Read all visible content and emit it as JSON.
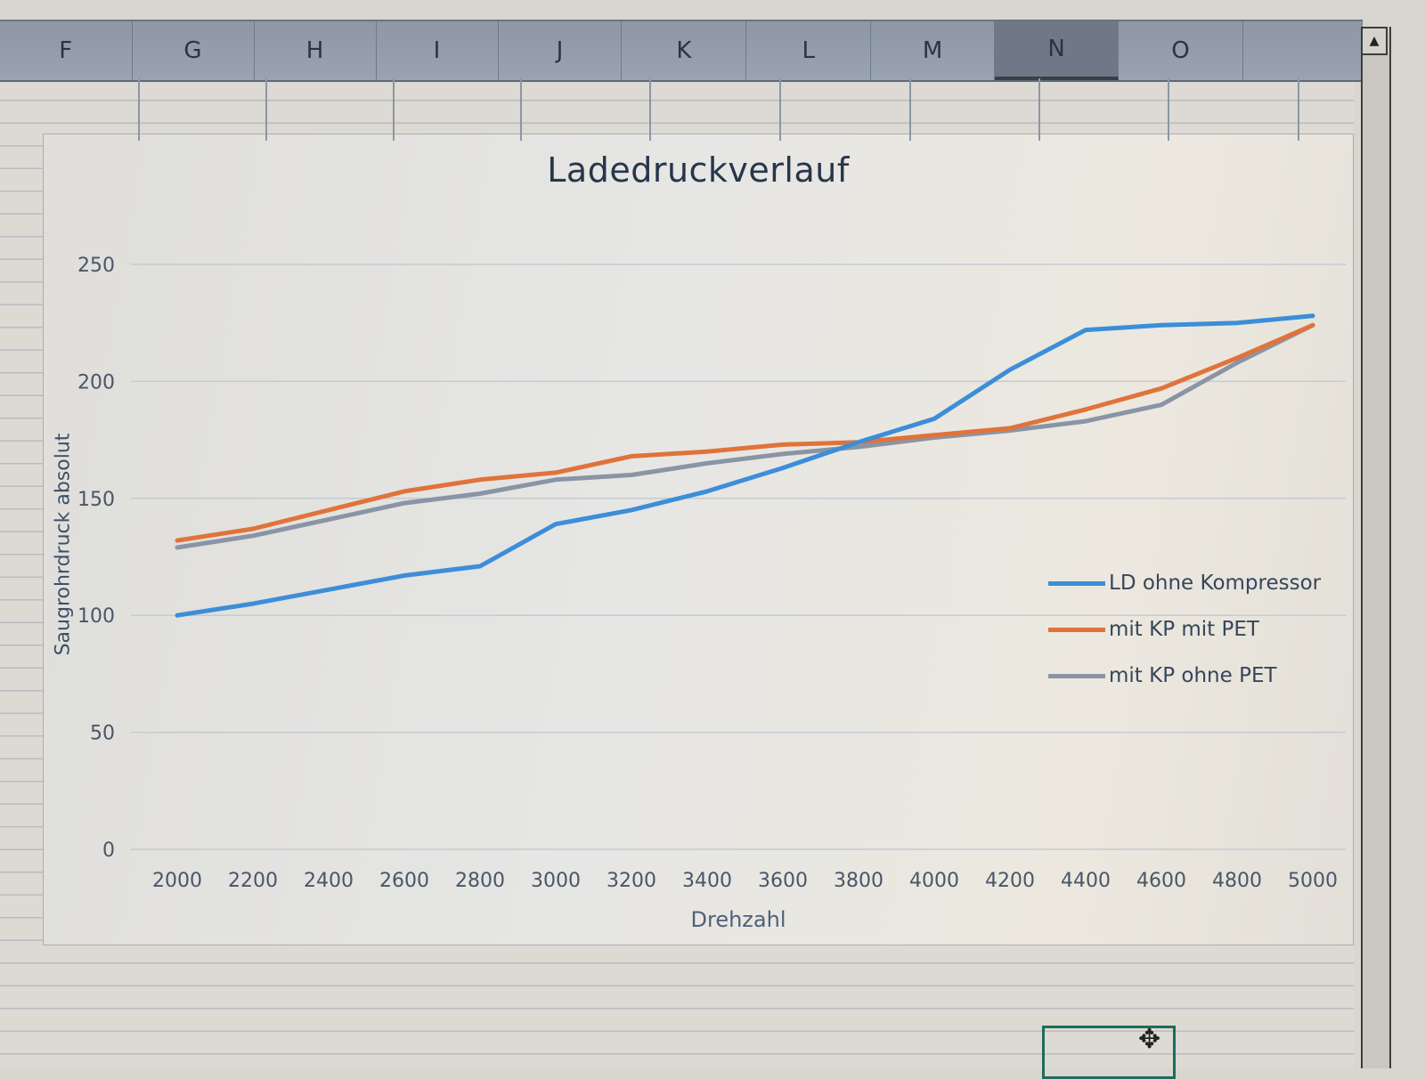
{
  "spreadsheet": {
    "columns": [
      "F",
      "G",
      "H",
      "I",
      "J",
      "K",
      "L",
      "M",
      "N",
      "O"
    ],
    "selected_column": "N",
    "scroll_up_icon": "▲"
  },
  "chart": {
    "title": "Ladedruckverlauf",
    "x_axis_title": "Drehzahl",
    "y_axis_title": "Saugrohrdruck absolut",
    "y_ticks": [
      "0",
      "50",
      "100",
      "150",
      "200",
      "250"
    ],
    "x_ticks": [
      "2000",
      "2200",
      "2400",
      "2600",
      "2800",
      "3000",
      "3200",
      "3400",
      "3600",
      "3800",
      "4000",
      "4200",
      "4400",
      "4600",
      "4800",
      "5000"
    ],
    "legend": [
      {
        "label": "LD ohne Kompressor",
        "color": "#3c8ed8"
      },
      {
        "label": "mit KP mit PET",
        "color": "#e0733a"
      },
      {
        "label": "mit KP ohne PET",
        "color": "#8a94a6"
      }
    ]
  },
  "chart_data": {
    "type": "line",
    "title": "Ladedruckverlauf",
    "xlabel": "Drehzahl",
    "ylabel": "Saugrohrdruck absolut",
    "categories": [
      2000,
      2200,
      2400,
      2600,
      2800,
      3000,
      3200,
      3400,
      3600,
      3800,
      4000,
      4200,
      4400,
      4600,
      4800,
      5000
    ],
    "ylim": [
      0,
      250
    ],
    "y_tick_step": 50,
    "grid": true,
    "legend_position": "right",
    "series": [
      {
        "name": "LD ohne Kompressor",
        "color": "#3c8ed8",
        "values": [
          100,
          105,
          111,
          117,
          121,
          139,
          145,
          153,
          163,
          174,
          184,
          205,
          222,
          224,
          225,
          228
        ]
      },
      {
        "name": "mit KP mit PET",
        "color": "#e0733a",
        "values": [
          132,
          137,
          145,
          153,
          158,
          161,
          168,
          170,
          173,
          174,
          177,
          180,
          188,
          197,
          210,
          224
        ]
      },
      {
        "name": "mit KP ohne PET",
        "color": "#8a94a6",
        "values": [
          129,
          134,
          141,
          148,
          152,
          158,
          160,
          165,
          169,
          172,
          176,
          179,
          183,
          190,
          208,
          224
        ]
      }
    ]
  }
}
